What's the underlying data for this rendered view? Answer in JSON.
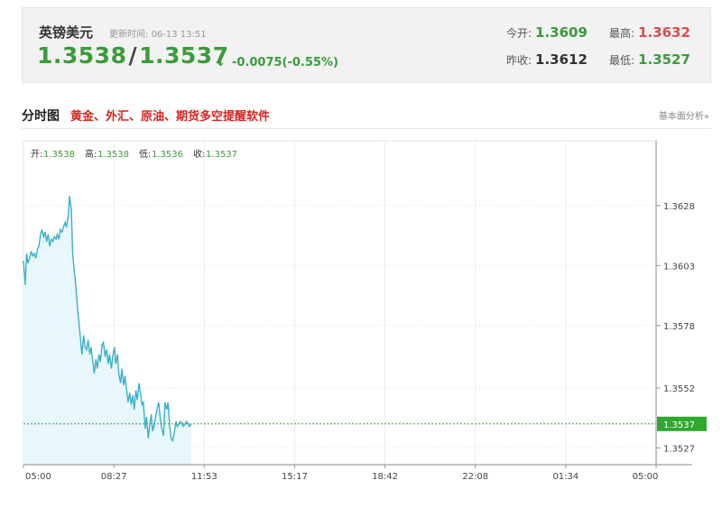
{
  "quote": {
    "name": "英镑美元",
    "update_label": "更新时间:",
    "update_time": "06-13 13:51",
    "bid": "1.3538",
    "slash": "/",
    "ask": "1.3537",
    "arrow": "↓",
    "change": "-0.0075(-0.55%)",
    "open_label": "今开:",
    "open": "1.3609",
    "high_label": "最高:",
    "high": "1.3632",
    "prev_close_label": "昨收:",
    "prev_close": "1.3612",
    "low_label": "最低:",
    "low": "1.3527",
    "colors": {
      "up": "#e04b4b",
      "down": "#3a9b3a"
    }
  },
  "section": {
    "title": "分时图",
    "promo": "黄金、外汇、原油、期货多空提醒软件",
    "link": "基本面分析»"
  },
  "chart_data": {
    "type": "line",
    "ohlc": [
      {
        "label": "开:",
        "value": "1.3538"
      },
      {
        "label": "高:",
        "value": "1.3538"
      },
      {
        "label": "低:",
        "value": "1.3536"
      },
      {
        "label": "收:",
        "value": "1.3537"
      }
    ],
    "x_ticks": [
      "05:00",
      "08:27",
      "11:53",
      "15:17",
      "18:42",
      "22:08",
      "01:34",
      "05:00"
    ],
    "y_ticks": [
      1.3628,
      1.3603,
      1.3578,
      1.3552,
      1.3527
    ],
    "y_tick_labels": [
      "1.3628",
      "1.3603",
      "1.3578",
      "1.3552",
      "1.3527"
    ],
    "ylim": [
      1.352,
      1.3655
    ],
    "current_price": 1.3537,
    "current_price_label": "1.3537",
    "grid": true,
    "line_color": "#3ab0c8",
    "fill_color": "#e8f7fb",
    "x_unit": "minutes since 05:00",
    "series": [
      {
        "x": [
          0,
          4,
          7,
          10,
          14,
          18,
          21,
          25,
          28,
          32,
          35,
          39,
          42,
          46,
          49,
          53,
          56,
          60,
          63,
          67,
          70,
          74,
          77,
          81,
          84,
          88,
          91,
          95,
          98,
          102,
          105,
          109,
          112,
          116,
          119,
          123,
          126,
          130,
          133,
          137,
          140,
          144,
          147,
          151,
          154,
          158,
          161,
          165,
          168,
          172,
          175,
          179,
          182,
          186,
          189,
          193,
          196,
          200,
          203,
          207,
          210,
          214,
          217,
          221,
          224,
          228,
          231,
          235,
          238,
          242,
          245,
          249,
          252,
          256,
          259,
          263,
          266,
          270,
          273,
          277,
          280,
          284,
          287,
          291,
          294,
          298,
          301,
          305,
          308,
          312,
          315,
          319,
          322,
          326,
          329,
          333,
          336,
          340,
          343,
          347,
          350,
          354,
          357,
          361,
          364,
          368,
          371,
          375,
          378,
          382,
          385,
          389,
          392,
          396,
          399,
          403,
          406,
          410,
          413,
          417,
          420,
          424,
          427,
          431,
          434,
          438,
          441,
          445,
          448,
          452,
          455,
          459,
          462,
          466,
          469,
          473,
          476,
          480,
          483,
          487,
          490,
          494,
          497,
          501,
          504,
          508,
          511,
          515,
          518,
          522,
          525,
          528
        ],
        "y": [
          1.3605,
          1.3595,
          1.3608,
          1.3604,
          1.3606,
          1.3609,
          1.3607,
          1.3608,
          1.3606,
          1.361,
          1.3611,
          1.3616,
          1.3618,
          1.3615,
          1.3617,
          1.3613,
          1.3616,
          1.3611,
          1.3614,
          1.3613,
          1.3615,
          1.3614,
          1.3616,
          1.3614,
          1.3618,
          1.3617,
          1.3619,
          1.3621,
          1.3619,
          1.3624,
          1.3632,
          1.3626,
          1.3608,
          1.36,
          1.3595,
          1.3585,
          1.358,
          1.3572,
          1.3566,
          1.3574,
          1.3569,
          1.3568,
          1.3572,
          1.3566,
          1.3569,
          1.3563,
          1.3558,
          1.3564,
          1.356,
          1.3566,
          1.3563,
          1.357,
          1.3571,
          1.3565,
          1.3568,
          1.3562,
          1.3566,
          1.356,
          1.3565,
          1.3569,
          1.3562,
          1.3566,
          1.3558,
          1.3554,
          1.356,
          1.3553,
          1.3557,
          1.3551,
          1.3546,
          1.355,
          1.3545,
          1.3549,
          1.3543,
          1.3551,
          1.3547,
          1.3554,
          1.355,
          1.3545,
          1.3546,
          1.3535,
          1.354,
          1.3531,
          1.3536,
          1.3541,
          1.3534,
          1.3537,
          1.354,
          1.3544,
          1.3546,
          1.3538,
          1.3535,
          1.3532,
          1.3546,
          1.3543,
          1.3546,
          1.3536,
          1.3531,
          1.353,
          1.3533,
          1.3538,
          1.3536,
          1.3537,
          1.3538,
          1.3537,
          1.3536,
          1.3537,
          1.3538,
          1.3537,
          1.3536,
          1.3537,
          1.3538,
          1.3536,
          1.3537,
          1.3538,
          1.3537,
          1.3536,
          1.3537,
          1.3538,
          1.3537,
          1.3536,
          1.3538,
          1.3537,
          1.3536,
          1.3537,
          1.3538,
          1.3537,
          1.3536,
          1.3537,
          1.3538,
          1.3537,
          1.3536,
          1.3537,
          1.3538,
          1.3537,
          1.3536,
          1.3537,
          1.3538,
          1.3537,
          1.3536,
          1.3537,
          1.3538,
          1.3537,
          1.3536,
          1.3537,
          1.3538,
          1.3537,
          1.3536,
          1.3537,
          1.3538,
          1.3537,
          1.3536,
          1.3537
        ]
      }
    ]
  }
}
